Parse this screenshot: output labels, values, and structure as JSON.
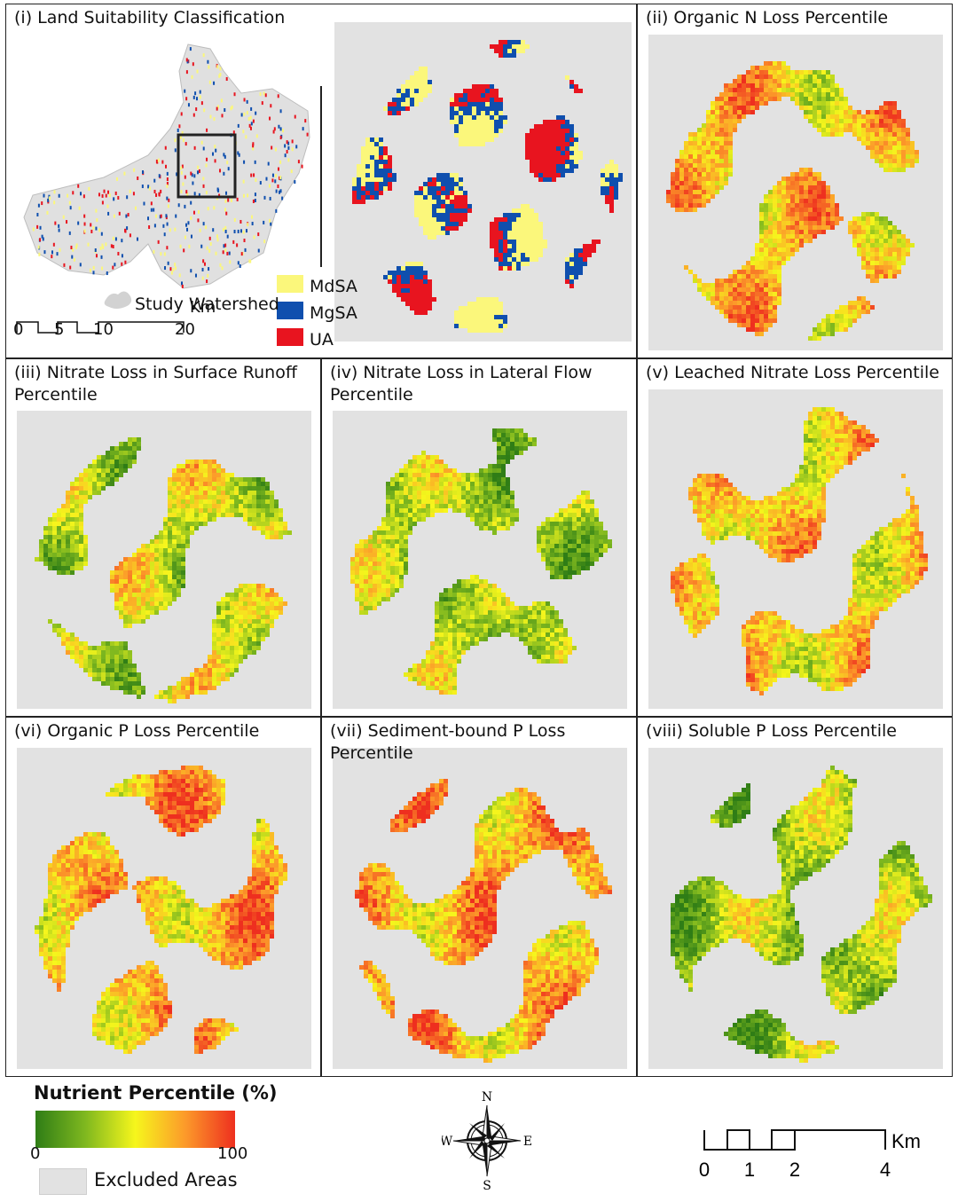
{
  "panels": [
    {
      "id": "i",
      "title": "(i) Land Suitability Classification"
    },
    {
      "id": "ii",
      "title": "(ii)  Organic N Loss Percentile",
      "bias": 0.62,
      "seed": 11
    },
    {
      "id": "iii",
      "title": "(iii)  Nitrate Loss in Surface Runoff\nPercentile",
      "bias": 0.42,
      "seed": 23
    },
    {
      "id": "iv",
      "title": "(iv)  Nitrate Loss in Lateral Flow\nPercentile",
      "bias": 0.33,
      "seed": 37
    },
    {
      "id": "v",
      "title": "(v)  Leached Nitrate Loss Percentile",
      "bias": 0.62,
      "seed": 41
    },
    {
      "id": "vi",
      "title": "(vi)  Organic P Loss Percentile",
      "bias": 0.68,
      "seed": 53
    },
    {
      "id": "vii",
      "title": "(vii) Sediment-bound P Loss Percentile",
      "bias": 0.7,
      "seed": 67
    },
    {
      "id": "viii",
      "title": "(viii)  Soluble P Loss Percentile",
      "bias": 0.3,
      "seed": 79
    }
  ],
  "suitability_legend": [
    {
      "label": "MdSA",
      "color": "#fbf77b"
    },
    {
      "label": "MgSA",
      "color": "#0f4fae"
    },
    {
      "label": "UA",
      "color": "#e8141f"
    }
  ],
  "study_watershed_label": "Study Watershed",
  "watershed_scale": {
    "ticks": [
      "0",
      "5",
      "10",
      "20"
    ],
    "unit": "Km"
  },
  "nutrient_legend": {
    "title": "Nutrient Percentile (%)",
    "min_label": "0",
    "max_label": "100",
    "ramp_colors": [
      "#2f7d16",
      "#7fb81f",
      "#f6f61c",
      "#fc9a2a",
      "#ee2f1f"
    ],
    "excluded_label": "Excluded Areas",
    "excluded_color": "#e2e2e2"
  },
  "compass": {
    "n": "N",
    "s": "S",
    "e": "E",
    "w": "W"
  },
  "map_scale": {
    "ticks": [
      "0",
      "1",
      "2",
      "4"
    ],
    "unit": "Km"
  }
}
